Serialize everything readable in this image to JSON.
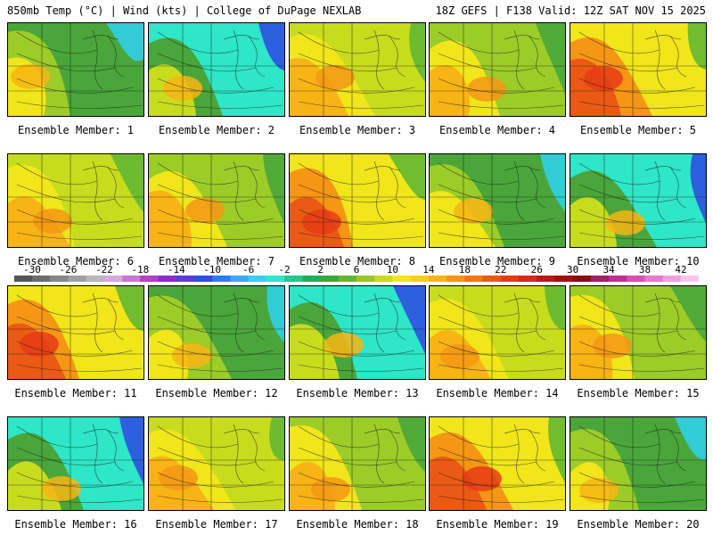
{
  "header": {
    "left_title": "850mb Temp (°C) | Wind (kts) | College of DuPage NEXLAB",
    "right_title": "18Z GEFS | F138 Valid: 12Z SAT NOV 15 2025"
  },
  "scale": {
    "labels": [
      "-30",
      "-26",
      "-22",
      "-18",
      "-14",
      "-10",
      "-6",
      "-2",
      "2",
      "6",
      "10",
      "14",
      "18",
      "22",
      "26",
      "30",
      "34",
      "38",
      "42"
    ],
    "colors": [
      "#555555",
      "#6e6e6e",
      "#878787",
      "#a0a0a0",
      "#b8b8b8",
      "#d6a8dc",
      "#c778cf",
      "#b240c8",
      "#8a2cc8",
      "#5a3cd8",
      "#2d50e0",
      "#2e7cf0",
      "#3fa8f5",
      "#39d0f0",
      "#2ee6c8",
      "#22c890",
      "#1fae60",
      "#35a83a",
      "#63b832",
      "#95c828",
      "#c8dc1e",
      "#f0e61a",
      "#f8d017",
      "#f8b414",
      "#f59614",
      "#f07814",
      "#eb5a14",
      "#e63c14",
      "#d82818",
      "#c01818",
      "#a01010",
      "#880c0c",
      "#a0206a",
      "#c03090",
      "#d850b0",
      "#e878c8",
      "#f0a0dc",
      "#f4c8ec"
    ]
  },
  "members": [
    {
      "label": "Ensemble Member: 1"
    },
    {
      "label": "Ensemble Member: 2"
    },
    {
      "label": "Ensemble Member: 3"
    },
    {
      "label": "Ensemble Member: 4"
    },
    {
      "label": "Ensemble Member: 5"
    },
    {
      "label": "Ensemble Member: 6"
    },
    {
      "label": "Ensemble Member: 7"
    },
    {
      "label": "Ensemble Member: 8"
    },
    {
      "label": "Ensemble Member: 9"
    },
    {
      "label": "Ensemble Member: 10"
    },
    {
      "label": "Ensemble Member: 11"
    },
    {
      "label": "Ensemble Member: 12"
    },
    {
      "label": "Ensemble Member: 13"
    },
    {
      "label": "Ensemble Member: 14"
    },
    {
      "label": "Ensemble Member: 15"
    },
    {
      "label": "Ensemble Member: 16"
    },
    {
      "label": "Ensemble Member: 17"
    },
    {
      "label": "Ensemble Member: 18"
    },
    {
      "label": "Ensemble Member: 19"
    },
    {
      "label": "Ensemble Member: 20"
    }
  ]
}
